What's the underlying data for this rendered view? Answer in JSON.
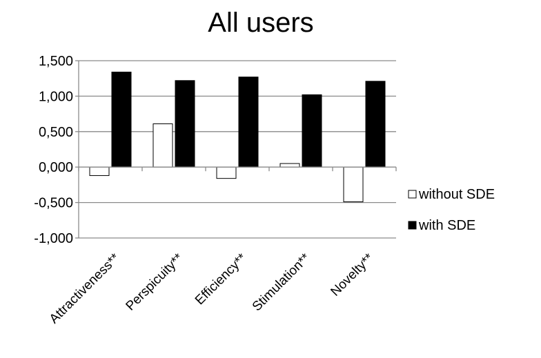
{
  "chart_data": {
    "type": "bar",
    "title": "All users",
    "categories": [
      "Attractiveness**",
      "Perspicuity**",
      "Efficiency**",
      "Stimulation**",
      "Novelty**"
    ],
    "series": [
      {
        "name": "without SDE",
        "values": [
          -0.12,
          0.61,
          -0.16,
          0.05,
          -0.49
        ],
        "color": "#ffffff"
      },
      {
        "name": "with SDE",
        "values": [
          1.34,
          1.22,
          1.27,
          1.02,
          1.21
        ],
        "color": "#000000"
      }
    ],
    "ylim": [
      -1.0,
      1.5
    ],
    "yticks": [
      -1.0,
      -0.5,
      0.0,
      0.5,
      1.0,
      1.5
    ],
    "ytick_labels": [
      "-1,000",
      "-0,500",
      "0,000",
      "0,500",
      "1,000",
      "1,500"
    ],
    "grid": "horizontal",
    "legend_position": "right"
  }
}
